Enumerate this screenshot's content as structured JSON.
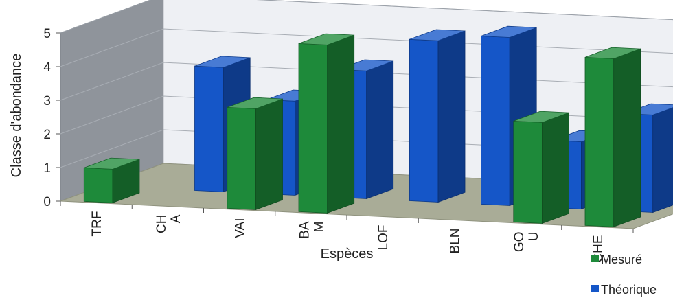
{
  "chart_data": {
    "type": "bar",
    "subtype": "3d-clustered-column",
    "title": "",
    "xlabel": "Espèces",
    "ylabel": "Classe d'abondance",
    "ylim": [
      0,
      5
    ],
    "yticks": [
      "0",
      "1",
      "2",
      "3",
      "4",
      "5"
    ],
    "categories": [
      [
        "TRF"
      ],
      [
        "CH",
        "A"
      ],
      [
        "VAI"
      ],
      [
        "BA",
        "M"
      ],
      [
        "LOF"
      ],
      [
        "BLN"
      ],
      [
        "GO",
        "U"
      ],
      [
        "CHE"
      ]
    ],
    "series": [
      {
        "name": "Mesuré",
        "color": "#1e8a3a",
        "values": [
          1,
          0,
          3,
          5,
          0,
          0,
          3,
          5
        ]
      },
      {
        "name": "Théorique",
        "color": "#1556c8",
        "values": [
          0,
          3.7,
          2.8,
          3.8,
          4.8,
          5,
          2,
          2.9
        ]
      }
    ],
    "legend_position": "bottom-right",
    "grid": true
  }
}
